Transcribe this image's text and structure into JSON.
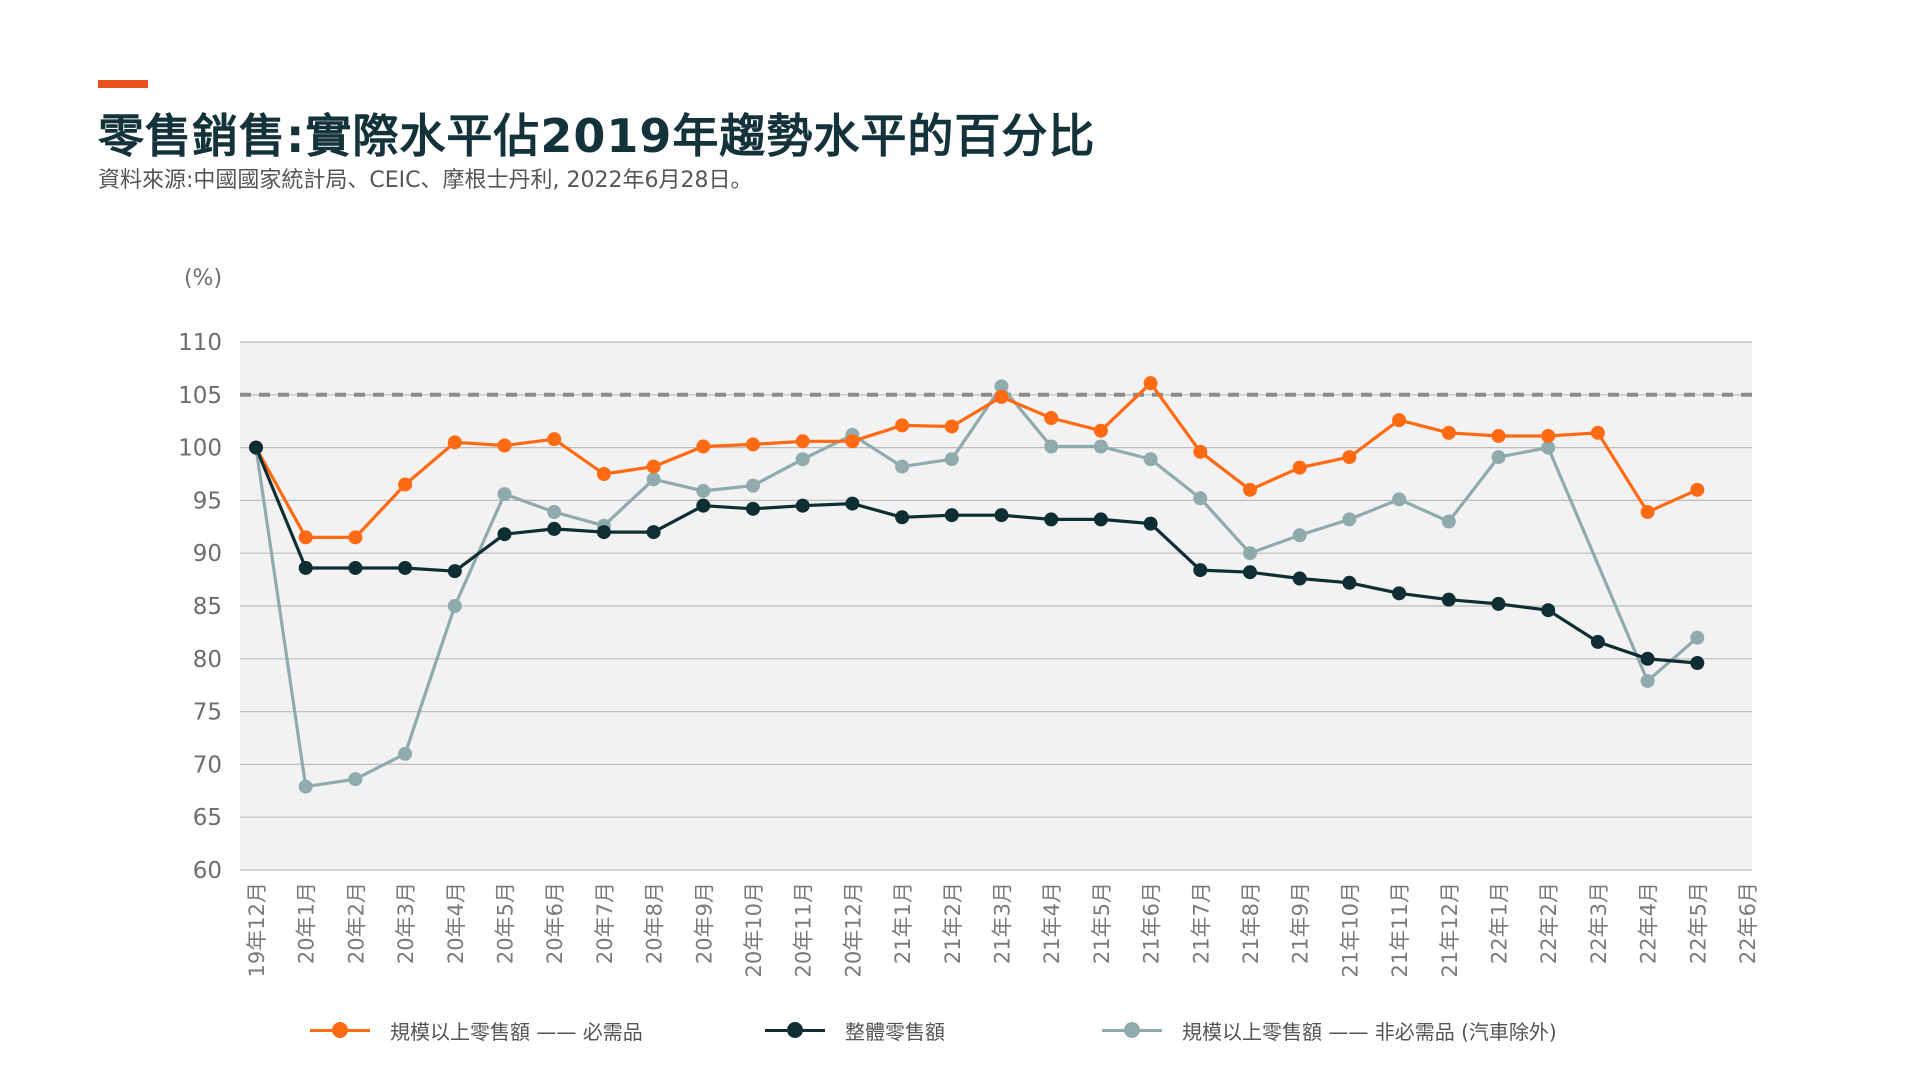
{
  "header": {
    "title": "零售銷售:實際水平佔2019年趨勢水平的百分比",
    "subtitle": "資料來源:中國國家統計局、CEIC、摩根士丹利, 2022年6月28日。"
  },
  "colors": {
    "accent": "#e8521d",
    "essential": "#ff6a13",
    "total": "#0f2e33",
    "non_essential": "#8fabad",
    "plot_bg": "#f2f2f2",
    "grid": "#bdbdbd",
    "reference_line": "#8c8c8c"
  },
  "chart_data": {
    "type": "line",
    "ylabel": "(%)",
    "ylim": [
      60,
      110
    ],
    "yticks": [
      60,
      65,
      70,
      75,
      80,
      85,
      90,
      95,
      100,
      105,
      110
    ],
    "reference_line": 105,
    "grid": true,
    "legend_position": "bottom",
    "categories": [
      "19年12月",
      "20年1月",
      "20年2月",
      "20年3月",
      "20年4月",
      "20年5月",
      "20年6月",
      "20年7月",
      "20年8月",
      "20年9月",
      "20年10月",
      "20年11月",
      "20年12月",
      "21年1月",
      "21年2月",
      "21年3月",
      "21年4月",
      "21年5月",
      "21年6月",
      "21年7月",
      "21年8月",
      "21年9月",
      "21年10月",
      "21年11月",
      "21年12月",
      "22年1月",
      "22年2月",
      "22年3月",
      "22年4月",
      "22年5月",
      "22年6月"
    ],
    "series": [
      {
        "name": "規模以上零售額 —— 必需品",
        "color": "#ff6a13",
        "values": [
          100,
          91.5,
          91.5,
          96.5,
          100.5,
          100.2,
          100.8,
          97.5,
          98.2,
          100.1,
          100.3,
          100.6,
          100.6,
          102.1,
          102.0,
          104.8,
          102.8,
          101.6,
          106.1,
          99.6,
          96.0,
          98.1,
          99.1,
          102.6,
          101.4,
          101.1,
          101.1,
          101.4,
          93.9,
          96.0,
          null
        ]
      },
      {
        "name": "整體零售額",
        "color": "#0f2e33",
        "values": [
          100,
          88.6,
          88.6,
          88.6,
          88.3,
          91.8,
          92.3,
          92.0,
          92.0,
          94.5,
          94.2,
          94.5,
          94.7,
          93.4,
          93.6,
          93.6,
          93.2,
          93.2,
          92.8,
          88.4,
          88.2,
          87.6,
          87.2,
          86.2,
          85.6,
          85.2,
          84.6,
          81.6,
          80.0,
          79.6,
          null
        ]
      },
      {
        "name": "規模以上零售額 —— 非必需品 (汽車除外)",
        "color": "#8fabad",
        "values": [
          100,
          67.9,
          68.6,
          71.0,
          85.0,
          95.6,
          93.9,
          92.6,
          97.0,
          95.9,
          96.4,
          98.9,
          101.2,
          98.2,
          98.9,
          105.8,
          100.1,
          100.1,
          98.9,
          95.2,
          90.0,
          91.7,
          93.2,
          95.1,
          93.0,
          99.1,
          100.0,
          null,
          77.9,
          82.0,
          null
        ]
      }
    ]
  }
}
